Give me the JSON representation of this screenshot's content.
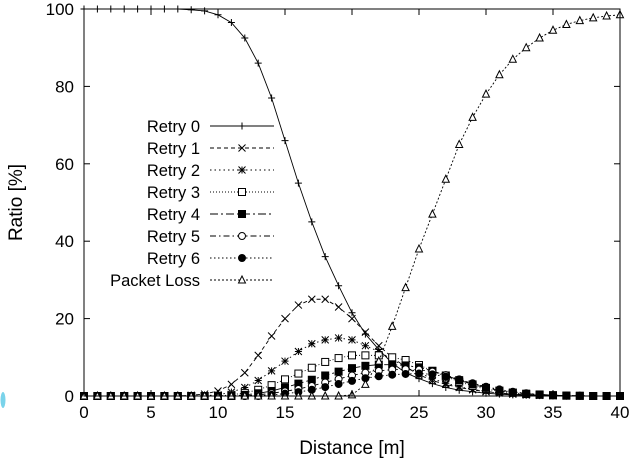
{
  "chart_data": {
    "type": "line",
    "title": "",
    "xlabel": "Distance [m]",
    "ylabel": "Ratio [%]",
    "xlim": [
      0,
      40
    ],
    "ylim": [
      0,
      100
    ],
    "xticks": [
      0,
      5,
      10,
      15,
      20,
      25,
      30,
      35,
      40
    ],
    "yticks": [
      0,
      20,
      40,
      60,
      80,
      100
    ],
    "grid": false,
    "legend_position": "left-center",
    "x": [
      0,
      1,
      2,
      3,
      4,
      5,
      6,
      7,
      8,
      9,
      10,
      11,
      12,
      13,
      14,
      15,
      16,
      17,
      18,
      19,
      20,
      21,
      22,
      23,
      24,
      25,
      26,
      27,
      28,
      29,
      30,
      31,
      32,
      33,
      34,
      35,
      36,
      37,
      38,
      39,
      40
    ],
    "series": [
      {
        "name": "Retry 0",
        "marker": "plus",
        "dash": "solid",
        "values": [
          100,
          100,
          100,
          100,
          100,
          100,
          100,
          100,
          99.8,
          99.5,
          98.5,
          96.5,
          92.5,
          86,
          77,
          66,
          55,
          45,
          36,
          28.5,
          21.5,
          16,
          12,
          8.5,
          6,
          4.5,
          3.2,
          2.2,
          1.5,
          1.1,
          0.7,
          0.5,
          0.3,
          0.2,
          0.1,
          0.1,
          0.05,
          0,
          0,
          0,
          0
        ]
      },
      {
        "name": "Retry 1",
        "marker": "x",
        "dash": "4,3",
        "values": [
          0,
          0,
          0,
          0,
          0,
          0,
          0,
          0,
          0.2,
          0.5,
          1.3,
          3,
          6,
          10.5,
          15.5,
          20,
          23.5,
          25,
          25,
          23,
          20,
          16.5,
          13,
          10,
          7.5,
          5.5,
          4,
          3,
          2.2,
          1.6,
          1.1,
          0.8,
          0.5,
          0.3,
          0.2,
          0.1,
          0.05,
          0,
          0,
          0,
          0
        ]
      },
      {
        "name": "Retry 2",
        "marker": "star",
        "dash": "1.5,3",
        "values": [
          0,
          0,
          0,
          0,
          0,
          0,
          0,
          0,
          0,
          0.1,
          0.3,
          1,
          2.2,
          4,
          6.5,
          9,
          11.5,
          13.5,
          14.5,
          15,
          14.5,
          13,
          11.5,
          9.5,
          7.5,
          6,
          4.5,
          3.3,
          2.4,
          1.7,
          1.2,
          0.8,
          0.5,
          0.3,
          0.2,
          0.1,
          0.05,
          0,
          0,
          0,
          0
        ]
      },
      {
        "name": "Retry 3",
        "marker": "square-open",
        "dash": "1,2",
        "values": [
          0,
          0,
          0,
          0,
          0,
          0,
          0,
          0,
          0,
          0,
          0,
          0.3,
          0.8,
          1.6,
          2.8,
          4.3,
          5.8,
          7.3,
          8.8,
          9.8,
          10.5,
          10.5,
          10.5,
          10,
          9.3,
          8,
          6.5,
          5,
          3.7,
          2.6,
          1.8,
          1.2,
          0.8,
          0.5,
          0.3,
          0.2,
          0.1,
          0.05,
          0,
          0,
          0
        ]
      },
      {
        "name": "Retry 4",
        "marker": "square-filled",
        "dash": "8,3,2,3",
        "values": [
          0,
          0,
          0,
          0,
          0,
          0,
          0,
          0,
          0,
          0,
          0,
          0,
          0.3,
          0.7,
          1.3,
          2.2,
          3.2,
          4.2,
          5.3,
          6.3,
          7.2,
          7.8,
          8.1,
          8.1,
          7.9,
          7.4,
          6.5,
          5.3,
          4.1,
          3,
          2.1,
          1.4,
          0.9,
          0.6,
          0.4,
          0.2,
          0.1,
          0.05,
          0,
          0,
          0
        ]
      },
      {
        "name": "Retry 5",
        "marker": "circle-open",
        "dash": "6,3,1.5,3",
        "values": [
          0,
          0,
          0,
          0,
          0,
          0,
          0,
          0,
          0,
          0,
          0,
          0,
          0,
          0.3,
          0.7,
          1.2,
          1.8,
          2.6,
          3.5,
          4.4,
          5.3,
          6,
          6.5,
          6.8,
          6.9,
          6.8,
          6.3,
          5.4,
          4.3,
          3.2,
          2.3,
          1.5,
          1,
          0.6,
          0.4,
          0.2,
          0.1,
          0.05,
          0,
          0,
          0
        ]
      },
      {
        "name": "Retry 6",
        "marker": "circle-filled",
        "dash": "1.5,2.5",
        "values": [
          0,
          0,
          0,
          0,
          0,
          0,
          0,
          0,
          0,
          0,
          0,
          0,
          0,
          0,
          0.3,
          0.6,
          1,
          1.6,
          2.3,
          3.1,
          3.9,
          4.6,
          5.1,
          5.5,
          5.7,
          5.8,
          5.6,
          5,
          4.2,
          3.3,
          2.4,
          1.7,
          1.1,
          0.7,
          0.4,
          0.2,
          0.1,
          0.05,
          0,
          0,
          0
        ]
      },
      {
        "name": "Packet Loss",
        "marker": "triangle-open",
        "dash": "2,2",
        "values": [
          0,
          0,
          0,
          0,
          0,
          0,
          0,
          0,
          0,
          0,
          0,
          0,
          0,
          0,
          0,
          0,
          0,
          0,
          0,
          0,
          0.3,
          3,
          9,
          18,
          28,
          38,
          47,
          56,
          65,
          72,
          78,
          83,
          87,
          90,
          92.5,
          94.5,
          96,
          97,
          97.7,
          98.2,
          98.5
        ]
      }
    ]
  }
}
